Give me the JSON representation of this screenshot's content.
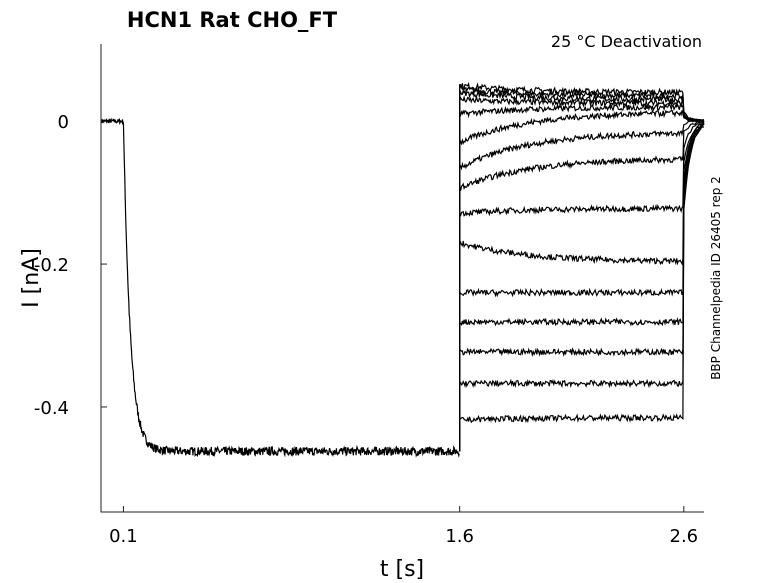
{
  "chart_data": {
    "type": "line",
    "title": "HCN1  Rat  CHO_FT",
    "subtitle": "25 °C  Deactivation",
    "side_label": "BBP Channelpedia ID 26405 rep 2",
    "xlabel": "t [s]",
    "ylabel": "I [nA]",
    "xlim": [
      0,
      2.69
    ],
    "ylim": [
      -0.547,
      0.108
    ],
    "xticks": [
      {
        "v": 0.1,
        "label": "0.1"
      },
      {
        "v": 1.6,
        "label": "1.6"
      },
      {
        "v": 2.6,
        "label": "2.6"
      }
    ],
    "yticks": [
      {
        "v": 0,
        "label": "0"
      },
      {
        "v": -0.2,
        "label": "-0.2"
      },
      {
        "v": -0.4,
        "label": "-0.4"
      }
    ],
    "grid": false,
    "activation": {
      "holding": 0,
      "step_start": 0.1,
      "step_end": 1.6,
      "level": -0.462,
      "tau": 0.03,
      "noise": 0.006
    },
    "tail_end": 2.6,
    "tails": [
      {
        "start": 0.05,
        "end": 0.04
      },
      {
        "start": 0.045,
        "end": 0.035
      },
      {
        "start": 0.04,
        "end": 0.03
      },
      {
        "start": 0.03,
        "end": 0.025
      },
      {
        "start": 0.01,
        "end": 0.02
      },
      {
        "start": -0.03,
        "end": 0.013
      },
      {
        "start": -0.066,
        "end": -0.015
      },
      {
        "start": -0.094,
        "end": -0.052
      },
      {
        "start": -0.129,
        "end": -0.122
      },
      {
        "start": -0.17,
        "end": -0.197
      },
      {
        "start": -0.24,
        "end": -0.24
      },
      {
        "start": -0.281,
        "end": -0.281
      },
      {
        "start": -0.323,
        "end": -0.323
      },
      {
        "start": -0.367,
        "end": -0.367
      },
      {
        "start": -0.418,
        "end": -0.415
      }
    ]
  }
}
